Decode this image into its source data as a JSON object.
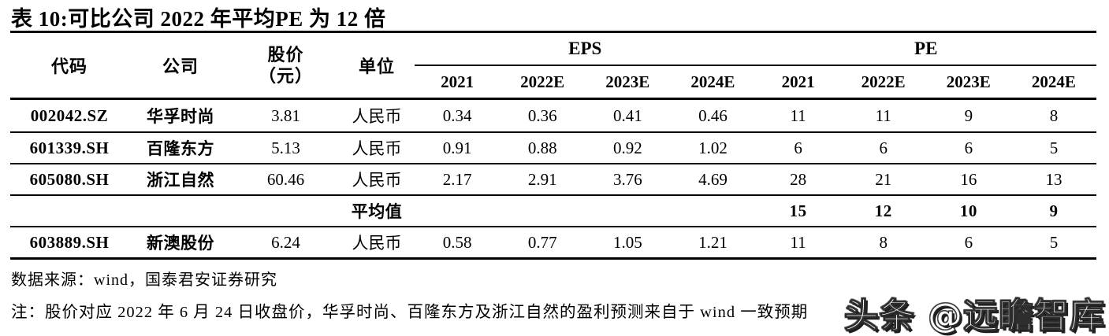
{
  "title": "表 10:可比公司 2022 年平均PE 为 12 倍",
  "colors": {
    "text": "#000000",
    "background": "#ffffff",
    "rule": "#000000",
    "watermark_fill": "#ffffff",
    "watermark_outline": "#2e2e2e"
  },
  "table": {
    "headers": {
      "code": "代码",
      "company": "公司",
      "price_line1": "股价",
      "price_line2": "（元）",
      "unit": "单位",
      "eps_group": "EPS",
      "pe_group": "PE",
      "years": [
        "2021",
        "2022E",
        "2023E",
        "2024E"
      ]
    },
    "rows": [
      {
        "code": "002042.SZ",
        "company": "华孚时尚",
        "price": "3.81",
        "unit": "人民币",
        "eps": [
          "0.34",
          "0.36",
          "0.41",
          "0.46"
        ],
        "pe": [
          "11",
          "11",
          "9",
          "8"
        ]
      },
      {
        "code": "601339.SH",
        "company": "百隆东方",
        "price": "5.13",
        "unit": "人民币",
        "eps": [
          "0.91",
          "0.88",
          "0.92",
          "1.02"
        ],
        "pe": [
          "6",
          "6",
          "6",
          "5"
        ]
      },
      {
        "code": "605080.SH",
        "company": "浙江自然",
        "price": "60.46",
        "unit": "人民币",
        "eps": [
          "2.17",
          "2.91",
          "3.76",
          "4.69"
        ],
        "pe": [
          "28",
          "21",
          "16",
          "13"
        ]
      },
      {
        "code": "",
        "company": "",
        "price": "",
        "unit": "平均值",
        "eps": [
          "",
          "",
          "",
          ""
        ],
        "pe": [
          "15",
          "12",
          "10",
          "9"
        ]
      },
      {
        "code": "603889.SH",
        "company": "新澳股份",
        "price": "6.24",
        "unit": "人民币",
        "eps": [
          "0.58",
          "0.77",
          "1.05",
          "1.21"
        ],
        "pe": [
          "11",
          "8",
          "6",
          "5"
        ]
      }
    ]
  },
  "footer": {
    "source": "数据来源：wind，国泰君安证券研究",
    "note": "注：股价对应 2022 年 6 月 24 日收盘价，华孚时尚、百隆东方及浙江自然的盈利预测来自于 wind 一致预期"
  },
  "watermark": "头条 @远瞻智库"
}
